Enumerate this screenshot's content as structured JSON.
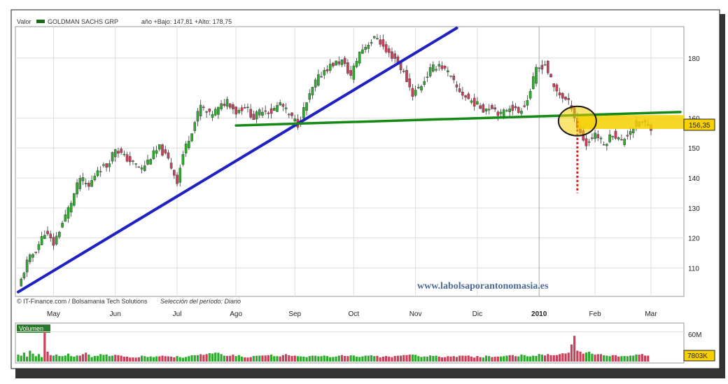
{
  "header": {
    "label": "Valor",
    "name": "GOLDMAN SACHS GRP",
    "range_info": "año +Bajo: 147,81 +Alto: 178,75"
  },
  "footer": {
    "credit": "© IT-Finance.com / Bolsamania Tech Solutions",
    "period": "Selección del período: Diario"
  },
  "watermark": "www.labolsaporantonomasia.es",
  "colors": {
    "up": "#2faa2f",
    "down": "#c8405a",
    "trend_blue": "#1f22c0",
    "trend_green": "#168a16",
    "price_tag": "#f6d000",
    "ellipse": "#1a1a1a",
    "red_dotted": "#e01414",
    "background": "#ffffff",
    "grid": "#dddddd"
  },
  "chart_data": {
    "type": "candlestick",
    "y_ticks": [
      110,
      120,
      130,
      140,
      150,
      160,
      180
    ],
    "ylim": [
      101,
      190
    ],
    "x_ticks": [
      "May",
      "Jun",
      "Jul",
      "Ago",
      "Sep",
      "Oct",
      "Nov",
      "Dic",
      "2010",
      "Feb",
      "Mar"
    ],
    "x_tick_sessions": [
      12,
      33,
      54,
      74,
      94,
      114,
      135,
      156,
      177,
      196,
      215
    ],
    "sessions": 225,
    "close_series": [
      [
        0,
        103
      ],
      [
        3,
        112
      ],
      [
        6,
        116
      ],
      [
        9,
        122
      ],
      [
        12,
        118
      ],
      [
        15,
        125
      ],
      [
        18,
        132
      ],
      [
        21,
        140
      ],
      [
        24,
        137
      ],
      [
        27,
        143
      ],
      [
        30,
        144
      ],
      [
        33,
        150
      ],
      [
        36,
        147
      ],
      [
        39,
        145
      ],
      [
        42,
        143
      ],
      [
        45,
        147
      ],
      [
        48,
        150
      ],
      [
        51,
        146
      ],
      [
        54,
        139
      ],
      [
        56,
        148
      ],
      [
        59,
        156
      ],
      [
        62,
        164
      ],
      [
        65,
        161
      ],
      [
        68,
        163
      ],
      [
        71,
        166
      ],
      [
        74,
        162
      ],
      [
        77,
        164
      ],
      [
        80,
        160
      ],
      [
        83,
        163
      ],
      [
        86,
        162
      ],
      [
        89,
        165
      ],
      [
        92,
        161
      ],
      [
        95,
        158
      ],
      [
        98,
        165
      ],
      [
        101,
        172
      ],
      [
        104,
        176
      ],
      [
        107,
        178
      ],
      [
        110,
        179
      ],
      [
        113,
        174
      ],
      [
        116,
        182
      ],
      [
        119,
        185
      ],
      [
        122,
        187
      ],
      [
        125,
        182
      ],
      [
        128,
        180
      ],
      [
        131,
        175
      ],
      [
        134,
        168
      ],
      [
        137,
        171
      ],
      [
        140,
        176
      ],
      [
        143,
        178
      ],
      [
        146,
        175
      ],
      [
        149,
        170
      ],
      [
        152,
        167
      ],
      [
        155,
        165
      ],
      [
        158,
        163
      ],
      [
        161,
        164
      ],
      [
        164,
        161
      ],
      [
        167,
        164
      ],
      [
        170,
        162
      ],
      [
        173,
        166
      ],
      [
        176,
        176
      ],
      [
        179,
        178
      ],
      [
        182,
        170
      ],
      [
        185,
        167
      ],
      [
        188,
        164
      ],
      [
        190,
        157
      ],
      [
        193,
        151
      ],
      [
        196,
        155
      ],
      [
        199,
        151
      ],
      [
        202,
        155
      ],
      [
        205,
        152
      ],
      [
        208,
        156
      ],
      [
        211,
        159
      ],
      [
        215,
        157
      ]
    ],
    "volume": {
      "label": "Volumen",
      "series": [
        [
          0,
          14
        ],
        [
          1,
          12
        ],
        [
          2,
          18
        ],
        [
          3,
          10
        ],
        [
          4,
          22
        ],
        [
          5,
          16
        ],
        [
          6,
          11
        ],
        [
          7,
          15
        ],
        [
          8,
          9
        ],
        [
          9,
          60
        ],
        [
          10,
          20
        ],
        [
          11,
          13
        ],
        [
          13,
          14
        ],
        [
          15,
          11
        ],
        [
          17,
          16
        ],
        [
          19,
          10
        ],
        [
          21,
          12
        ],
        [
          23,
          18
        ],
        [
          25,
          9
        ],
        [
          28,
          15
        ],
        [
          31,
          11
        ],
        [
          34,
          13
        ],
        [
          37,
          10
        ],
        [
          40,
          8
        ],
        [
          43,
          11
        ],
        [
          46,
          9
        ],
        [
          49,
          12
        ],
        [
          52,
          10
        ],
        [
          55,
          9
        ],
        [
          58,
          11
        ],
        [
          61,
          13
        ],
        [
          64,
          15
        ],
        [
          67,
          18
        ],
        [
          70,
          12
        ],
        [
          73,
          14
        ],
        [
          76,
          10
        ],
        [
          79,
          9
        ],
        [
          82,
          12
        ],
        [
          85,
          13
        ],
        [
          88,
          11
        ],
        [
          91,
          15
        ],
        [
          94,
          12
        ],
        [
          97,
          10
        ],
        [
          100,
          12
        ],
        [
          103,
          11
        ],
        [
          106,
          9
        ],
        [
          109,
          12
        ],
        [
          112,
          11
        ],
        [
          115,
          10
        ],
        [
          118,
          12
        ],
        [
          121,
          11
        ],
        [
          124,
          10
        ],
        [
          127,
          9
        ],
        [
          130,
          12
        ],
        [
          133,
          14
        ],
        [
          136,
          11
        ],
        [
          139,
          10
        ],
        [
          142,
          12
        ],
        [
          145,
          9
        ],
        [
          148,
          11
        ],
        [
          151,
          12
        ],
        [
          154,
          10
        ],
        [
          157,
          9
        ],
        [
          160,
          11
        ],
        [
          163,
          10
        ],
        [
          166,
          12
        ],
        [
          169,
          11
        ],
        [
          172,
          13
        ],
        [
          175,
          12
        ],
        [
          178,
          14
        ],
        [
          181,
          13
        ],
        [
          184,
          15
        ],
        [
          187,
          18
        ],
        [
          189,
          52
        ],
        [
          190,
          22
        ],
        [
          192,
          16
        ],
        [
          194,
          20
        ],
        [
          196,
          14
        ],
        [
          198,
          15
        ],
        [
          200,
          12
        ],
        [
          202,
          13
        ],
        [
          205,
          11
        ],
        [
          208,
          12
        ],
        [
          211,
          14
        ],
        [
          214,
          12
        ],
        [
          215,
          10
        ]
      ],
      "ticks": [
        "60M"
      ],
      "last_value": "7803K"
    },
    "last_price": "156,35",
    "trendlines": [
      {
        "name": "blue-support",
        "color": "trend_blue",
        "from": [
          0,
          102
        ],
        "to": [
          149,
          190
        ]
      },
      {
        "name": "green-neckline",
        "color": "trend_green",
        "from": [
          74,
          157.5
        ],
        "to": [
          225,
          162
        ]
      }
    ],
    "highlight": {
      "ellipse_center": [
        190,
        159
      ],
      "red_line_x": 190,
      "red_line_from": 159,
      "red_line_to": 135
    }
  }
}
